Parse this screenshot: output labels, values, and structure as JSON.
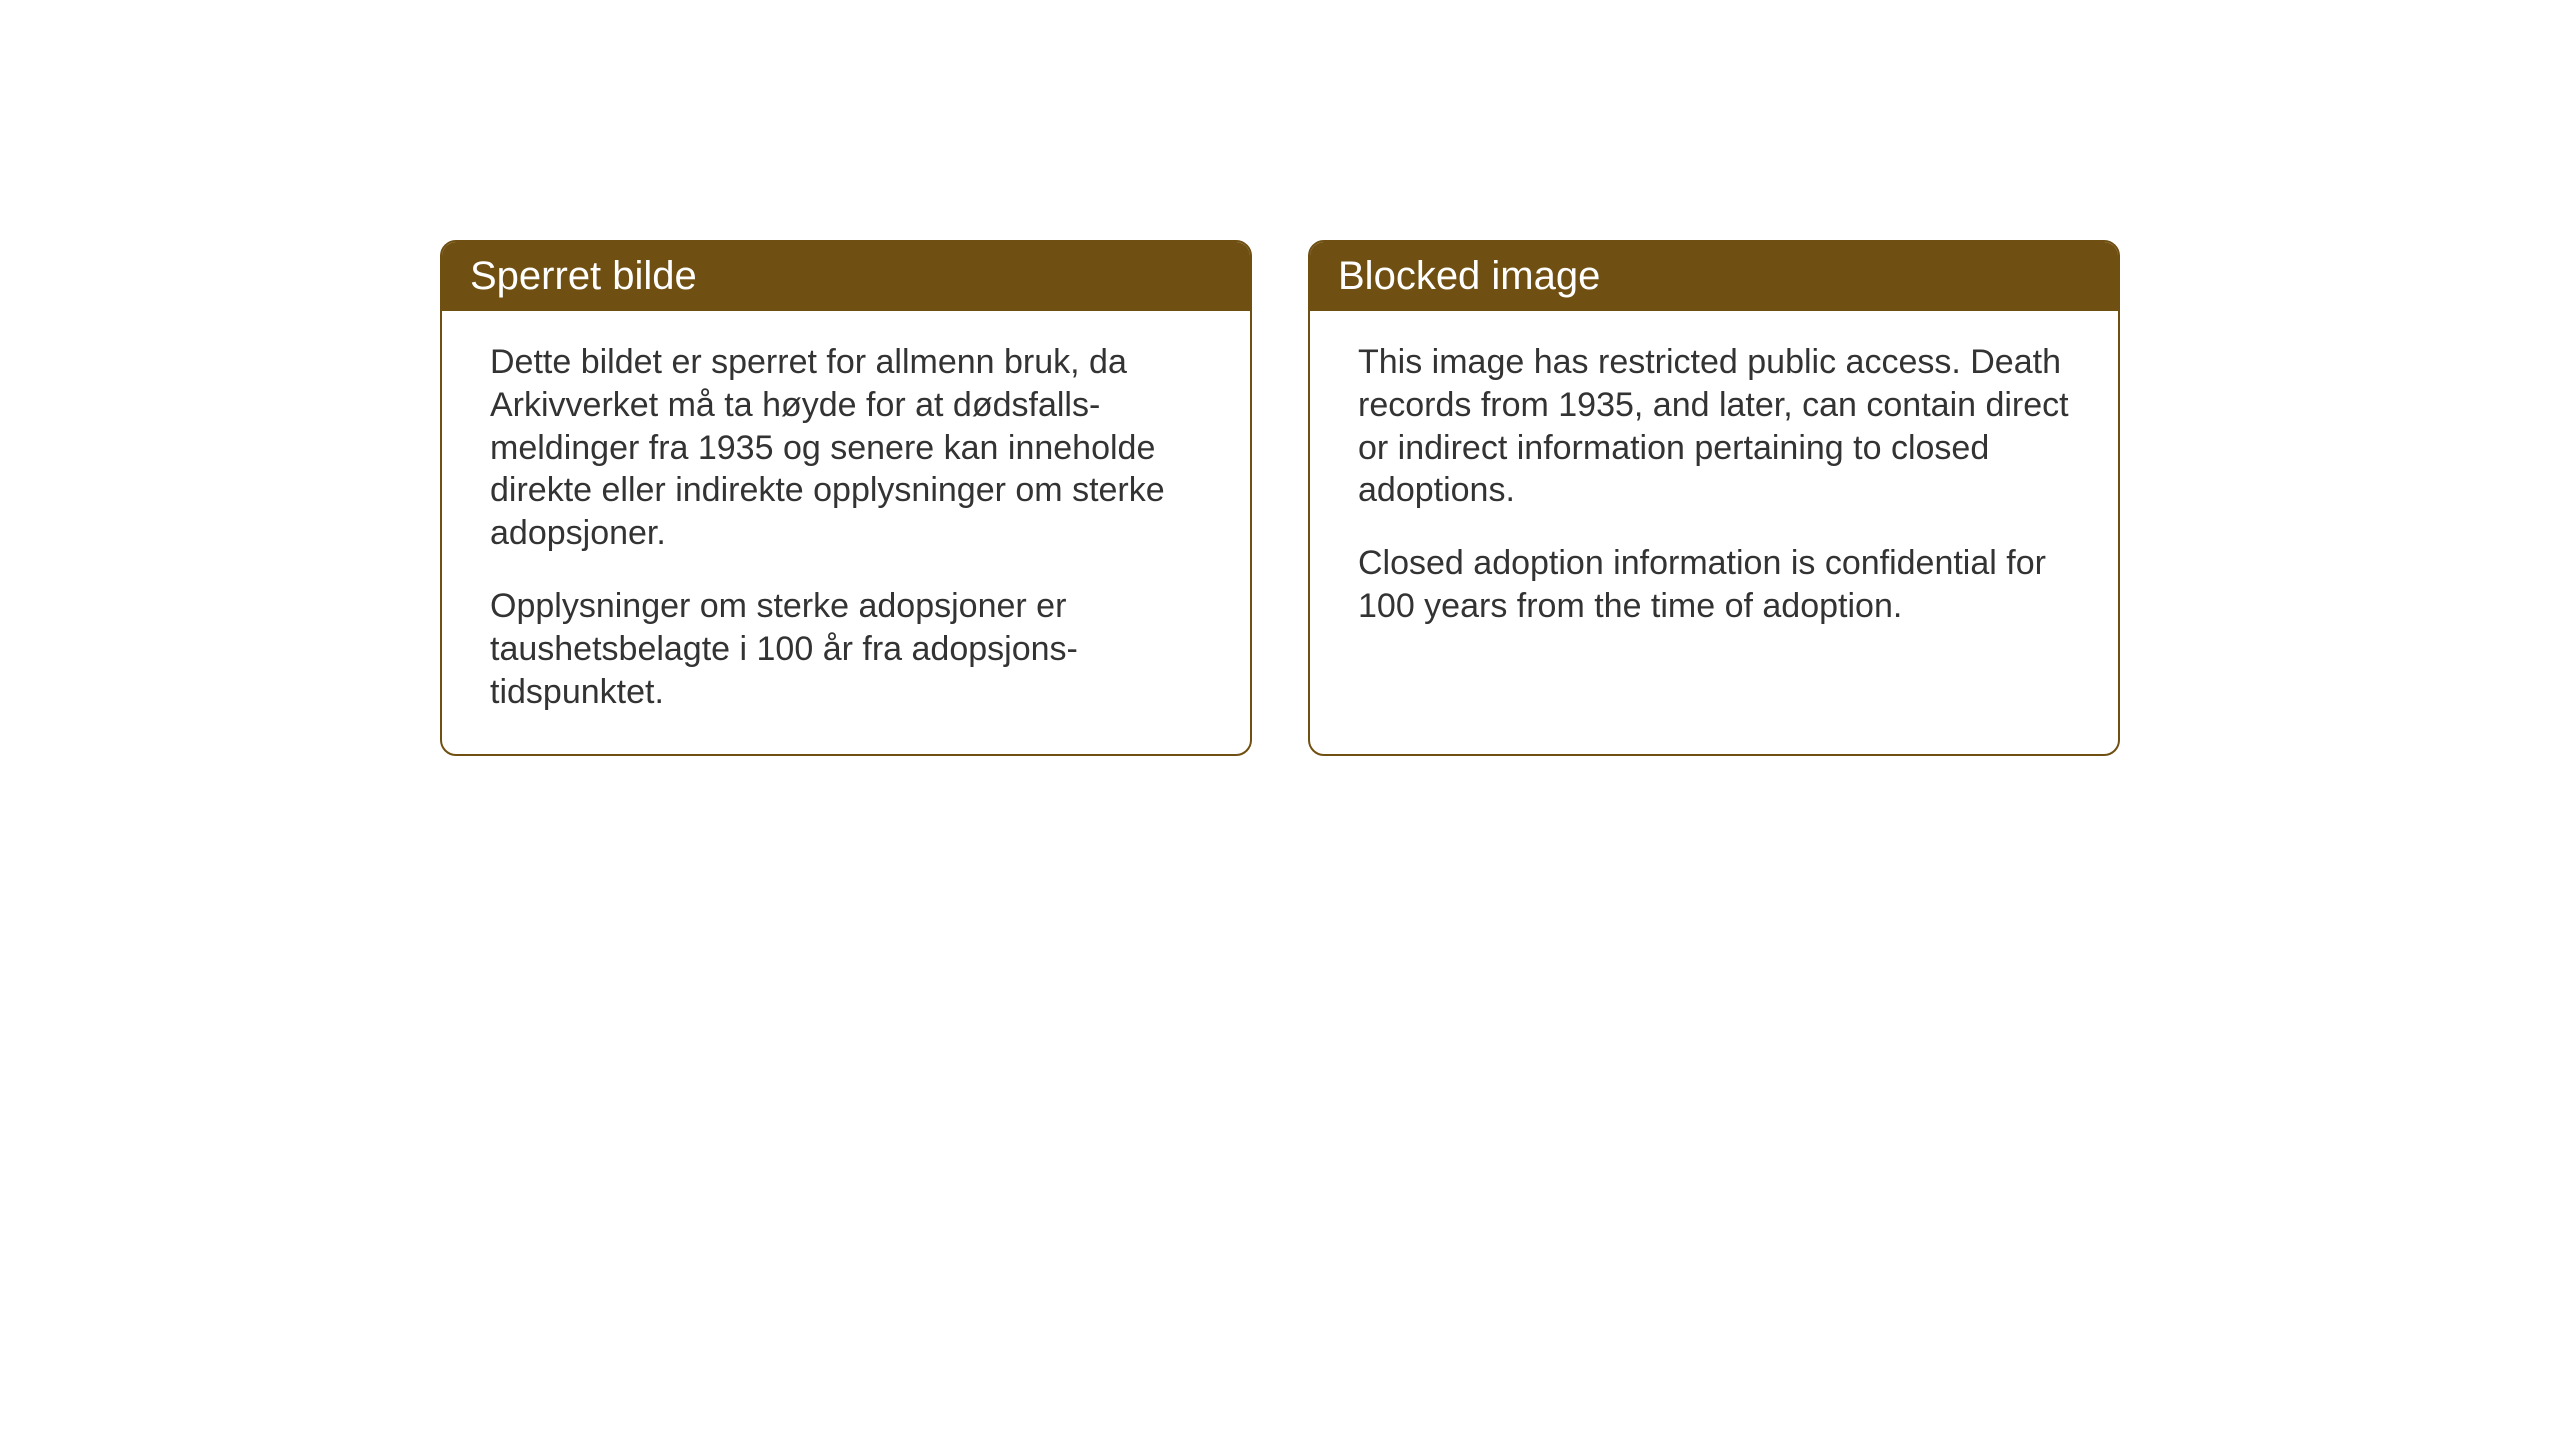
{
  "cards": {
    "norwegian": {
      "title": "Sperret bilde",
      "paragraph1": "Dette bildet er sperret for allmenn bruk, da Arkivverket må ta høyde for at dødsfalls-meldinger fra 1935 og senere kan inneholde direkte eller indirekte opplysninger om sterke adopsjoner.",
      "paragraph2": "Opplysninger om sterke adopsjoner er taushetsbelagte i 100 år fra adopsjons-tidspunktet."
    },
    "english": {
      "title": "Blocked image",
      "paragraph1": "This image has restricted public access. Death records from 1935, and later, can contain direct or indirect information pertaining to closed adoptions.",
      "paragraph2": "Closed adoption information is confidential for 100 years from the time of adoption."
    }
  },
  "styling": {
    "header_background_color": "#705012",
    "header_text_color": "#ffffff",
    "card_border_color": "#705012",
    "card_background_color": "#ffffff",
    "body_text_color": "#333333",
    "header_font_size": 40,
    "body_font_size": 34,
    "card_border_radius": 16,
    "card_border_width": 2
  }
}
